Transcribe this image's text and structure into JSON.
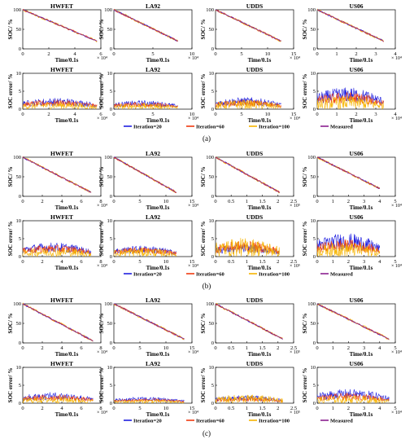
{
  "chart_data": {
    "type": "line",
    "legend": {
      "placement": "bottom",
      "entries": [
        "Iteration=20",
        "Iteration=60",
        "Iteration=100",
        "Measured"
      ],
      "colors": {
        "Iteration=20": "#1f1fe0",
        "Iteration=60": "#f03a10",
        "Iteration=100": "#f6b400",
        "Measured": "#8a2090"
      }
    },
    "rows": [
      {
        "caption": "(a)",
        "soc": [
          {
            "title": "HWFET",
            "xlim": [
              0,
              6
            ],
            "ylim": [
              0,
              100
            ],
            "xticks": [
              "0",
              "2",
              "4",
              "6"
            ],
            "yticks": [
              "0",
              "50",
              "100"
            ],
            "xlabel": "Time/0.1s",
            "ylabel": "SOC/ %",
            "exponent": "× 10⁴",
            "soc_start": 100,
            "soc_end": 20,
            "end_x": 5.7
          },
          {
            "title": "LA92",
            "xlim": [
              0,
              10
            ],
            "ylim": [
              0,
              100
            ],
            "xticks": [
              "0",
              "5",
              "10"
            ],
            "yticks": [
              "0",
              "50",
              "100"
            ],
            "xlabel": "Time/0.1s",
            "ylabel": "SOC/ %",
            "exponent": "× 10⁴",
            "soc_start": 100,
            "soc_end": 20,
            "end_x": 8.2
          },
          {
            "title": "UDDS",
            "xlim": [
              0,
              15
            ],
            "ylim": [
              0,
              100
            ],
            "xticks": [
              "0",
              "5",
              "10",
              "15"
            ],
            "yticks": [
              "0",
              "50",
              "100"
            ],
            "xlabel": "Time/0.1s",
            "ylabel": "SOC/ %",
            "exponent": "× 10⁴",
            "soc_start": 100,
            "soc_end": 20,
            "end_x": 12.6
          },
          {
            "title": "US06",
            "xlim": [
              0,
              4
            ],
            "ylim": [
              0,
              100
            ],
            "xticks": [
              "0",
              "1",
              "2",
              "3",
              "4"
            ],
            "yticks": [
              "0",
              "50",
              "100"
            ],
            "xlabel": "Time/0.1s",
            "ylabel": "SOC/ %",
            "exponent": "× 10⁴",
            "soc_start": 100,
            "soc_end": 20,
            "end_x": 3.4
          }
        ],
        "err": [
          {
            "title": "HWFET",
            "xlim": [
              0,
              6
            ],
            "ylim": [
              0,
              10
            ],
            "xticks": [
              "0",
              "2",
              "4",
              "6"
            ],
            "yticks": [
              "0",
              "5",
              "10"
            ],
            "xlabel": "Time/0.1s",
            "ylabel": "SOC error/ %",
            "exponent": "× 10⁴",
            "end_x": 5.7,
            "peaks": {
              "Iteration=20": 3.6,
              "Iteration=60": 3.0,
              "Iteration=100": 2.4
            }
          },
          {
            "title": "LA92",
            "xlim": [
              0,
              10
            ],
            "ylim": [
              0,
              10
            ],
            "xticks": [
              "0",
              "5",
              "10"
            ],
            "yticks": [
              "0",
              "5",
              "10"
            ],
            "xlabel": "Time/0.1s",
            "ylabel": "SOC error/ %",
            "exponent": "× 10⁴",
            "end_x": 8.2,
            "peaks": {
              "Iteration=20": 2.8,
              "Iteration=60": 2.3,
              "Iteration=100": 1.9
            }
          },
          {
            "title": "UDDS",
            "xlim": [
              0,
              15
            ],
            "ylim": [
              0,
              10
            ],
            "xticks": [
              "0",
              "5",
              "10",
              "15"
            ],
            "yticks": [
              "0",
              "5",
              "10"
            ],
            "xlabel": "Time/0.1s",
            "ylabel": "SOC error/ %",
            "exponent": "× 10⁴",
            "end_x": 12.6,
            "peaks": {
              "Iteration=20": 3.8,
              "Iteration=60": 3.0,
              "Iteration=100": 3.0
            }
          },
          {
            "title": "US06",
            "xlim": [
              0,
              4
            ],
            "ylim": [
              0,
              10
            ],
            "xticks": [
              "0",
              "1",
              "2",
              "3",
              "4"
            ],
            "yticks": [
              "0",
              "5",
              "10"
            ],
            "xlabel": "Time/0.1s",
            "ylabel": "SOC error/ %",
            "exponent": "× 10⁴",
            "end_x": 3.4,
            "peaks": {
              "Iteration=20": 7.0,
              "Iteration=60": 5.5,
              "Iteration=100": 4.2
            }
          }
        ]
      },
      {
        "caption": "(b)",
        "soc": [
          {
            "title": "HWFET",
            "xlim": [
              0,
              8
            ],
            "ylim": [
              0,
              100
            ],
            "xticks": [
              "0",
              "2",
              "4",
              "6",
              "8"
            ],
            "yticks": [
              "0",
              "50",
              "100"
            ],
            "xlabel": "Time/0.1s",
            "ylabel": "SOC/ %",
            "exponent": "× 10⁴",
            "soc_start": 100,
            "soc_end": 10,
            "end_x": 7.0
          },
          {
            "title": "LA92",
            "xlim": [
              0,
              15
            ],
            "ylim": [
              0,
              100
            ],
            "xticks": [
              "0",
              "5",
              "10",
              "15"
            ],
            "yticks": [
              "0",
              "50",
              "100"
            ],
            "xlabel": "Time/0.1s",
            "ylabel": "SOC/ %",
            "exponent": "× 10⁴",
            "soc_start": 100,
            "soc_end": 10,
            "end_x": 12.0
          },
          {
            "title": "UDDS",
            "xlim": [
              0,
              2.5
            ],
            "ylim": [
              0,
              100
            ],
            "xticks": [
              "0",
              "0.5",
              "1",
              "1.5",
              "2",
              "2.5"
            ],
            "yticks": [
              "0",
              "50",
              "100"
            ],
            "xlabel": "Time/0.1s",
            "ylabel": "SOC/ %",
            "exponent": "× 10⁵",
            "soc_start": 100,
            "soc_end": 10,
            "end_x": 2.05
          },
          {
            "title": "US06",
            "xlim": [
              0,
              5
            ],
            "ylim": [
              0,
              100
            ],
            "xticks": [
              "0",
              "1",
              "2",
              "3",
              "4",
              "5"
            ],
            "yticks": [
              "0",
              "50",
              "100"
            ],
            "xlabel": "Time/0.1s",
            "ylabel": "SOC/ %",
            "exponent": "× 10⁴",
            "soc_start": 100,
            "soc_end": 20,
            "end_x": 4.0
          }
        ],
        "err": [
          {
            "title": "HWFET",
            "xlim": [
              0,
              8
            ],
            "ylim": [
              0,
              10
            ],
            "xticks": [
              "0",
              "2",
              "4",
              "6",
              "8"
            ],
            "yticks": [
              "0",
              "5",
              "10"
            ],
            "xlabel": "Time/0.1s",
            "ylabel": "SOC error/ %",
            "exponent": "× 10⁴",
            "end_x": 7.0,
            "peaks": {
              "Iteration=20": 4.5,
              "Iteration=60": 3.8,
              "Iteration=100": 3.0
            }
          },
          {
            "title": "LA92",
            "xlim": [
              0,
              15
            ],
            "ylim": [
              0,
              10
            ],
            "xticks": [
              "0",
              "5",
              "10",
              "15"
            ],
            "yticks": [
              "0",
              "5",
              "10"
            ],
            "xlabel": "Time/0.1s",
            "ylabel": "SOC error/ %",
            "exponent": "× 10⁴",
            "end_x": 12.0,
            "peaks": {
              "Iteration=20": 3.5,
              "Iteration=60": 3.0,
              "Iteration=100": 2.8
            }
          },
          {
            "title": "UDDS",
            "xlim": [
              0,
              2.5
            ],
            "ylim": [
              0,
              10
            ],
            "xticks": [
              "0",
              "0.5",
              "1",
              "1.5",
              "2",
              "2.5"
            ],
            "yticks": [
              "0",
              "5",
              "10"
            ],
            "xlabel": "Time/0.1s",
            "ylabel": "SOC error/ %",
            "exponent": "× 10⁵",
            "end_x": 2.05,
            "peaks": {
              "Iteration=20": 4.0,
              "Iteration=60": 5.0,
              "Iteration=100": 6.0
            }
          },
          {
            "title": "US06",
            "xlim": [
              0,
              5
            ],
            "ylim": [
              0,
              10
            ],
            "xticks": [
              "0",
              "1",
              "2",
              "3",
              "4",
              "5"
            ],
            "yticks": [
              "0",
              "5",
              "10"
            ],
            "xlabel": "Time/0.1s",
            "ylabel": "SOC error/ %",
            "exponent": "× 10⁴",
            "end_x": 4.0,
            "peaks": {
              "Iteration=20": 7.5,
              "Iteration=60": 5.5,
              "Iteration=100": 4.5
            }
          }
        ]
      },
      {
        "caption": "(c)",
        "soc": [
          {
            "title": "HWFET",
            "xlim": [
              0,
              8
            ],
            "ylim": [
              0,
              100
            ],
            "xticks": [
              "0",
              "2",
              "4",
              "6",
              "8"
            ],
            "yticks": [
              "0",
              "50",
              "100"
            ],
            "xlabel": "Time/0.1s",
            "ylabel": "SOC/ %",
            "exponent": "× 10⁴",
            "soc_start": 100,
            "soc_end": 5,
            "end_x": 7.2
          },
          {
            "title": "LA92",
            "xlim": [
              0,
              15
            ],
            "ylim": [
              0,
              100
            ],
            "xticks": [
              "0",
              "5",
              "10",
              "15"
            ],
            "yticks": [
              "0",
              "50",
              "100"
            ],
            "xlabel": "Time/0.1s",
            "ylabel": "SOC/ %",
            "exponent": "× 10⁴",
            "soc_start": 100,
            "soc_end": 10,
            "end_x": 13.5
          },
          {
            "title": "UDDS",
            "xlim": [
              0,
              2.5
            ],
            "ylim": [
              0,
              100
            ],
            "xticks": [
              "0",
              "0.5",
              "1",
              "1.5",
              "2",
              "2.5"
            ],
            "yticks": [
              "0",
              "50",
              "100"
            ],
            "xlabel": "Time/0.1s",
            "ylabel": "SOC/ %",
            "exponent": "× 10⁵",
            "soc_start": 100,
            "soc_end": 10,
            "end_x": 2.15
          },
          {
            "title": "US06",
            "xlim": [
              0,
              5
            ],
            "ylim": [
              0,
              100
            ],
            "xticks": [
              "0",
              "1",
              "2",
              "3",
              "4",
              "5"
            ],
            "yticks": [
              "0",
              "50",
              "100"
            ],
            "xlabel": "Time/0.1s",
            "ylabel": "SOC/ %",
            "exponent": "× 10⁴",
            "soc_start": 100,
            "soc_end": 10,
            "end_x": 4.6
          }
        ],
        "err": [
          {
            "title": "HWFET",
            "xlim": [
              0,
              8
            ],
            "ylim": [
              0,
              10
            ],
            "xticks": [
              "0",
              "2",
              "4",
              "6",
              "8"
            ],
            "yticks": [
              "0",
              "5",
              "10"
            ],
            "xlabel": "Time/0.1s",
            "ylabel": "SOC error/ %",
            "exponent": "× 10⁴",
            "end_x": 7.2,
            "peaks": {
              "Iteration=20": 3.5,
              "Iteration=60": 2.8,
              "Iteration=100": 2.2
            }
          },
          {
            "title": "LA92",
            "xlim": [
              0,
              15
            ],
            "ylim": [
              0,
              10
            ],
            "xticks": [
              "0",
              "5",
              "10",
              "15"
            ],
            "yticks": [
              "0",
              "5",
              "10"
            ],
            "xlabel": "Time/0.1s",
            "ylabel": "SOC error/ %",
            "exponent": "× 10⁴",
            "end_x": 13.5,
            "peaks": {
              "Iteration=20": 2.0,
              "Iteration=60": 1.5,
              "Iteration=100": 1.2
            }
          },
          {
            "title": "UDDS",
            "xlim": [
              0,
              2.5
            ],
            "ylim": [
              0,
              10
            ],
            "xticks": [
              "0",
              "0.5",
              "1",
              "1.5",
              "2",
              "2.5"
            ],
            "yticks": [
              "0",
              "5",
              "10"
            ],
            "xlabel": "Time/0.1s",
            "ylabel": "SOC error/ %",
            "exponent": "× 10⁵",
            "end_x": 2.15,
            "peaks": {
              "Iteration=20": 2.5,
              "Iteration=60": 2.0,
              "Iteration=100": 2.8
            }
          },
          {
            "title": "US06",
            "xlim": [
              0,
              5
            ],
            "ylim": [
              0,
              10
            ],
            "xticks": [
              "0",
              "1",
              "2",
              "3",
              "4",
              "5"
            ],
            "yticks": [
              "0",
              "5",
              "10"
            ],
            "xlabel": "Time/0.1s",
            "ylabel": "SOC error/ %",
            "exponent": "× 10⁴",
            "end_x": 4.6,
            "peaks": {
              "Iteration=20": 4.5,
              "Iteration=60": 3.2,
              "Iteration=100": 2.5
            }
          }
        ]
      }
    ]
  }
}
